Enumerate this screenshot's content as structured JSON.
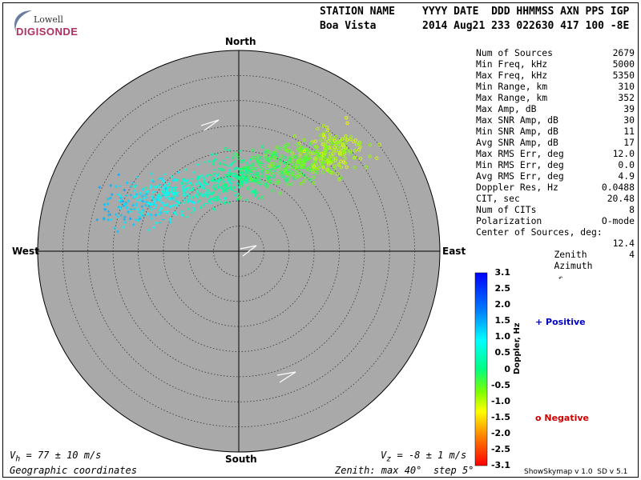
{
  "logo": {
    "line1": "Lowell",
    "line2": "DIGISONDE"
  },
  "header": {
    "col_station_label": "STATION NAME",
    "col_date_label": "YYYY DATE  DDD HHMMSS AXN PPS IGP",
    "station_name": "Boa Vista",
    "date_values": "2014 Aug21 233 022630 417 100 -8E"
  },
  "compass": {
    "north": "North",
    "south": "South",
    "east": "East",
    "west": "West"
  },
  "params": [
    {
      "label": "Num of Sources",
      "value": "2679"
    },
    {
      "label": "Min Freq, kHz",
      "value": "5000"
    },
    {
      "label": "Max Freq, kHz",
      "value": "5350"
    },
    {
      "label": "Min Range, km",
      "value": "310"
    },
    {
      "label": "Max Range, km",
      "value": "352"
    },
    {
      "label": "Max Amp, dB",
      "value": "39"
    },
    {
      "label": "Max SNR Amp, dB",
      "value": "30"
    },
    {
      "label": "Min SNR Amp, dB",
      "value": "11"
    },
    {
      "label": "Avg SNR Amp, dB",
      "value": "17"
    },
    {
      "label": "Max RMS Err, deg",
      "value": "12.0"
    },
    {
      "label": "Min RMS Err, deg",
      "value": "0.0"
    },
    {
      "label": "Avg RMS Err, deg",
      "value": "4.9"
    },
    {
      "label": "Doppler Res, Hz",
      "value": "0.0488"
    },
    {
      "label": "CIT, sec",
      "value": "20.48"
    },
    {
      "label": "Num of CITs",
      "value": "8"
    },
    {
      "label": "Polarization",
      "value": "O-mode"
    }
  ],
  "center": {
    "title": "Center of Sources, deg:",
    "zenith_label": "Zenith",
    "zenith_value": "12.4",
    "azimuth_label": "Azimuth",
    "azimuth_value": "4"
  },
  "colorbar": {
    "ticks": [
      "3.1",
      "2.5",
      "2.0",
      "1.5",
      "1.0",
      "0.5",
      "0",
      "-0.5",
      "-1.0",
      "-1.5",
      "-2.0",
      "-2.5",
      "-3.1"
    ],
    "min": -3.1,
    "max": 3.1,
    "title": "Doppler, Hz"
  },
  "legend": {
    "positive": "+ Positive",
    "negative": "o Negative",
    "positive_color": "#0000c0",
    "negative_color": "#d00000"
  },
  "footer": {
    "vh": "V",
    "vh_sub": "h",
    "vh_rest": " = 77 ± 10 m/s",
    "vz": "V",
    "vz_sub": "z",
    "vz_rest": " = -8 ± 1 m/s",
    "coords": "Geographic coordinates",
    "zenith_info": "Zenith: max 40°  step 5°",
    "credit": "ShowSkymap v 1.0  SD v 5.1"
  },
  "plot": {
    "zenith_max_deg": 40,
    "zenith_step_deg": 5,
    "disk_color": "#a9a9a9"
  }
}
